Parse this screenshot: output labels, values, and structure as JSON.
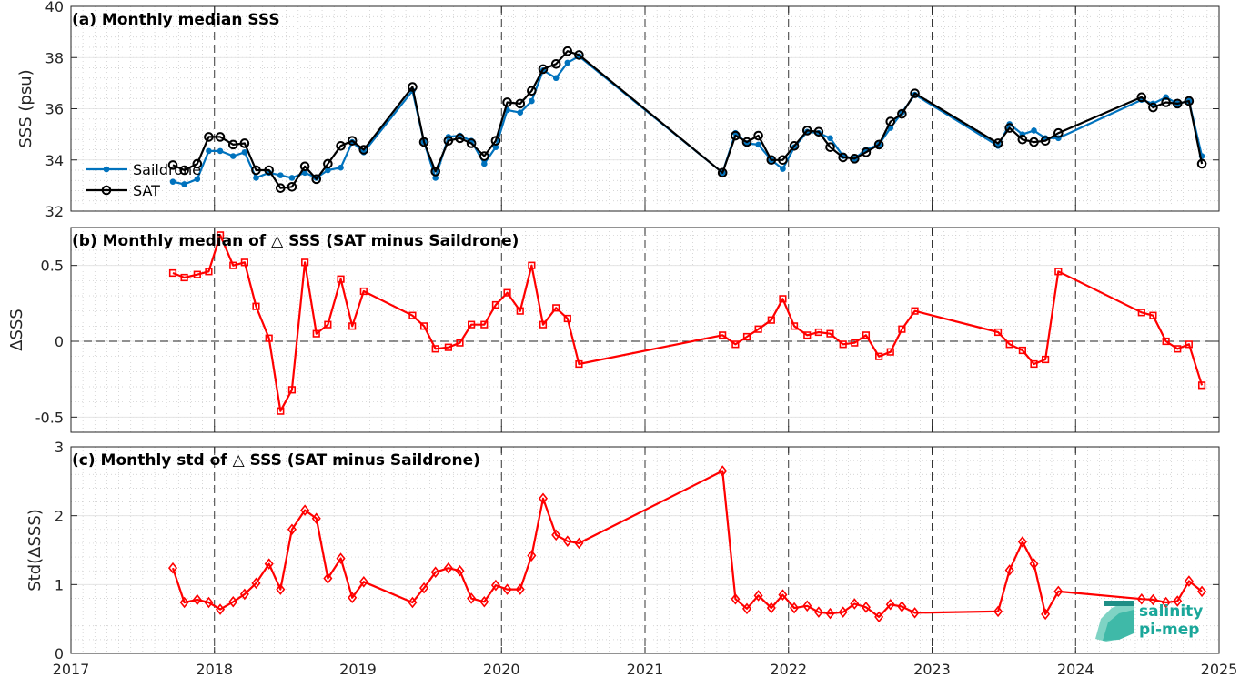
{
  "x_axis": {
    "xlim": [
      2017,
      2025
    ],
    "ticks": [
      2017,
      2018,
      2019,
      2020,
      2021,
      2022,
      2023,
      2024,
      2025
    ],
    "tick_labels": [
      "2017",
      "2018",
      "2019",
      "2020",
      "2021",
      "2022",
      "2023",
      "2024",
      "2025"
    ]
  },
  "logo": {
    "line1": "salinity",
    "line2": "pi-mep",
    "color": "#1aa79a"
  },
  "chart_data": [
    {
      "type": "line",
      "title": "(a) Monthly median SSS",
      "ylabel": "SSS (psu)",
      "ylim": [
        32,
        40
      ],
      "yticks": [
        32,
        34,
        36,
        38,
        40
      ],
      "ytick_labels": [
        "32",
        "34",
        "36",
        "38",
        "40"
      ],
      "grid": true,
      "legend_placement": "left",
      "series": [
        {
          "name": "Saildrone",
          "color": "#0072bd",
          "marker": "dot",
          "points": [
            [
              2017.71,
              33.15
            ],
            [
              2017.79,
              33.05
            ],
            [
              2017.88,
              33.25
            ],
            [
              2017.96,
              34.35
            ],
            [
              2018.04,
              34.35
            ],
            [
              2018.13,
              34.15
            ],
            [
              2018.21,
              34.3
            ],
            [
              2018.29,
              33.3
            ],
            [
              2018.38,
              33.5
            ],
            [
              2018.46,
              33.4
            ],
            [
              2018.54,
              33.3
            ],
            [
              2018.63,
              33.5
            ],
            [
              2018.71,
              33.3
            ],
            [
              2018.79,
              33.6
            ],
            [
              2018.88,
              33.7
            ],
            [
              2018.96,
              34.7
            ],
            [
              2019.04,
              34.3
            ],
            [
              2019.38,
              36.7
            ],
            [
              2019.46,
              34.7
            ],
            [
              2019.54,
              33.3
            ],
            [
              2019.63,
              34.9
            ],
            [
              2019.71,
              34.95
            ],
            [
              2019.79,
              34.75
            ],
            [
              2019.88,
              33.85
            ],
            [
              2019.96,
              34.5
            ],
            [
              2020.04,
              35.95
            ],
            [
              2020.13,
              35.85
            ],
            [
              2020.21,
              36.3
            ],
            [
              2020.29,
              37.5
            ],
            [
              2020.38,
              37.2
            ],
            [
              2020.46,
              37.8
            ],
            [
              2020.54,
              38.05
            ],
            [
              2021.54,
              33.5
            ],
            [
              2021.63,
              35.05
            ],
            [
              2021.71,
              34.65
            ],
            [
              2021.79,
              34.6
            ],
            [
              2021.88,
              34.0
            ],
            [
              2021.96,
              33.65
            ],
            [
              2022.04,
              34.5
            ],
            [
              2022.13,
              35.1
            ],
            [
              2022.21,
              35.05
            ],
            [
              2022.29,
              34.85
            ],
            [
              2022.38,
              34.15
            ],
            [
              2022.46,
              34.05
            ],
            [
              2022.54,
              34.4
            ],
            [
              2022.63,
              34.6
            ],
            [
              2022.71,
              35.25
            ],
            [
              2022.79,
              35.85
            ],
            [
              2022.88,
              36.55
            ],
            [
              2023.46,
              34.55
            ],
            [
              2023.54,
              35.4
            ],
            [
              2023.63,
              35.0
            ],
            [
              2023.71,
              35.15
            ],
            [
              2023.79,
              34.85
            ],
            [
              2023.88,
              34.85
            ],
            [
              2024.46,
              36.35
            ],
            [
              2024.54,
              36.2
            ],
            [
              2024.63,
              36.45
            ],
            [
              2024.71,
              36.2
            ],
            [
              2024.79,
              36.3
            ],
            [
              2024.88,
              34.15
            ]
          ]
        },
        {
          "name": "SAT",
          "color": "#000000",
          "marker": "circle",
          "points": [
            [
              2017.71,
              33.8
            ],
            [
              2017.79,
              33.6
            ],
            [
              2017.88,
              33.85
            ],
            [
              2017.96,
              34.9
            ],
            [
              2018.04,
              34.9
            ],
            [
              2018.13,
              34.6
            ],
            [
              2018.21,
              34.65
            ],
            [
              2018.29,
              33.6
            ],
            [
              2018.38,
              33.6
            ],
            [
              2018.46,
              32.9
            ],
            [
              2018.54,
              32.95
            ],
            [
              2018.63,
              33.75
            ],
            [
              2018.71,
              33.25
            ],
            [
              2018.79,
              33.85
            ],
            [
              2018.88,
              34.55
            ],
            [
              2018.96,
              34.75
            ],
            [
              2019.04,
              34.4
            ],
            [
              2019.38,
              36.85
            ],
            [
              2019.46,
              34.7
            ],
            [
              2019.54,
              33.55
            ],
            [
              2019.63,
              34.75
            ],
            [
              2019.71,
              34.85
            ],
            [
              2019.79,
              34.65
            ],
            [
              2019.88,
              34.15
            ],
            [
              2019.96,
              34.75
            ],
            [
              2020.04,
              36.25
            ],
            [
              2020.13,
              36.2
            ],
            [
              2020.21,
              36.7
            ],
            [
              2020.29,
              37.55
            ],
            [
              2020.38,
              37.75
            ],
            [
              2020.46,
              38.25
            ],
            [
              2020.54,
              38.1
            ],
            [
              2021.54,
              33.5
            ],
            [
              2021.63,
              34.95
            ],
            [
              2021.71,
              34.7
            ],
            [
              2021.79,
              34.95
            ],
            [
              2021.88,
              34.0
            ],
            [
              2021.96,
              34.0
            ],
            [
              2022.04,
              34.55
            ],
            [
              2022.13,
              35.15
            ],
            [
              2022.21,
              35.1
            ],
            [
              2022.29,
              34.5
            ],
            [
              2022.38,
              34.1
            ],
            [
              2022.46,
              34.05
            ],
            [
              2022.54,
              34.3
            ],
            [
              2022.63,
              34.6
            ],
            [
              2022.71,
              35.5
            ],
            [
              2022.79,
              35.8
            ],
            [
              2022.88,
              36.6
            ],
            [
              2023.46,
              34.65
            ],
            [
              2023.54,
              35.25
            ],
            [
              2023.63,
              34.8
            ],
            [
              2023.71,
              34.7
            ],
            [
              2023.79,
              34.75
            ],
            [
              2023.88,
              35.05
            ],
            [
              2024.46,
              36.45
            ],
            [
              2024.54,
              36.05
            ],
            [
              2024.63,
              36.25
            ],
            [
              2024.71,
              36.2
            ],
            [
              2024.79,
              36.3
            ],
            [
              2024.88,
              33.85
            ]
          ]
        }
      ]
    },
    {
      "type": "line",
      "title": "(b) Monthly median of △ SSS (SAT minus Saildrone)",
      "ylabel": "ΔSSS",
      "ylim": [
        -0.6,
        0.75
      ],
      "yticks": [
        -0.5,
        0,
        0.5
      ],
      "ytick_labels": [
        "-0.5",
        "0",
        "0.5"
      ],
      "grid": true,
      "zero_line": true,
      "series": [
        {
          "color": "#ff0000",
          "marker": "square",
          "points": [
            [
              2017.71,
              0.45
            ],
            [
              2017.79,
              0.42
            ],
            [
              2017.88,
              0.44
            ],
            [
              2017.96,
              0.46
            ],
            [
              2018.04,
              0.7
            ],
            [
              2018.13,
              0.5
            ],
            [
              2018.21,
              0.52
            ],
            [
              2018.29,
              0.23
            ],
            [
              2018.38,
              0.02
            ],
            [
              2018.46,
              -0.46
            ],
            [
              2018.54,
              -0.32
            ],
            [
              2018.63,
              0.52
            ],
            [
              2018.71,
              0.05
            ],
            [
              2018.79,
              0.11
            ],
            [
              2018.88,
              0.41
            ],
            [
              2018.96,
              0.1
            ],
            [
              2019.04,
              0.33
            ],
            [
              2019.38,
              0.17
            ],
            [
              2019.46,
              0.1
            ],
            [
              2019.54,
              -0.05
            ],
            [
              2019.63,
              -0.04
            ],
            [
              2019.71,
              -0.01
            ],
            [
              2019.79,
              0.11
            ],
            [
              2019.88,
              0.11
            ],
            [
              2019.96,
              0.24
            ],
            [
              2020.04,
              0.32
            ],
            [
              2020.13,
              0.2
            ],
            [
              2020.21,
              0.5
            ],
            [
              2020.29,
              0.11
            ],
            [
              2020.38,
              0.22
            ],
            [
              2020.46,
              0.15
            ],
            [
              2020.54,
              -0.15
            ],
            [
              2021.54,
              0.04
            ],
            [
              2021.63,
              -0.02
            ],
            [
              2021.71,
              0.03
            ],
            [
              2021.79,
              0.08
            ],
            [
              2021.88,
              0.14
            ],
            [
              2021.96,
              0.28
            ],
            [
              2022.04,
              0.1
            ],
            [
              2022.13,
              0.04
            ],
            [
              2022.21,
              0.06
            ],
            [
              2022.29,
              0.05
            ],
            [
              2022.38,
              -0.02
            ],
            [
              2022.46,
              -0.01
            ],
            [
              2022.54,
              0.04
            ],
            [
              2022.63,
              -0.1
            ],
            [
              2022.71,
              -0.07
            ],
            [
              2022.79,
              0.08
            ],
            [
              2022.88,
              0.2
            ],
            [
              2023.46,
              0.06
            ],
            [
              2023.54,
              -0.02
            ],
            [
              2023.63,
              -0.06
            ],
            [
              2023.71,
              -0.15
            ],
            [
              2023.79,
              -0.12
            ],
            [
              2023.88,
              0.46
            ],
            [
              2024.46,
              0.19
            ],
            [
              2024.54,
              0.17
            ],
            [
              2024.63,
              0.0
            ],
            [
              2024.71,
              -0.05
            ],
            [
              2024.79,
              -0.02
            ],
            [
              2024.88,
              -0.29
            ]
          ]
        }
      ]
    },
    {
      "type": "line",
      "title": "(c) Monthly std of △ SSS (SAT minus Saildrone)",
      "ylabel": "Std(ΔSSS)",
      "ylim": [
        0,
        3
      ],
      "yticks": [
        0,
        1,
        2,
        3
      ],
      "ytick_labels": [
        "0",
        "1",
        "2",
        "3"
      ],
      "grid": true,
      "series": [
        {
          "color": "#ff0000",
          "marker": "diamond",
          "points": [
            [
              2017.71,
              1.24
            ],
            [
              2017.79,
              0.74
            ],
            [
              2017.88,
              0.78
            ],
            [
              2017.96,
              0.74
            ],
            [
              2018.04,
              0.64
            ],
            [
              2018.13,
              0.75
            ],
            [
              2018.21,
              0.86
            ],
            [
              2018.29,
              1.02
            ],
            [
              2018.38,
              1.3
            ],
            [
              2018.46,
              0.93
            ],
            [
              2018.54,
              1.8
            ],
            [
              2018.63,
              2.08
            ],
            [
              2018.71,
              1.96
            ],
            [
              2018.79,
              1.09
            ],
            [
              2018.88,
              1.38
            ],
            [
              2018.96,
              0.81
            ],
            [
              2019.04,
              1.04
            ],
            [
              2019.38,
              0.74
            ],
            [
              2019.46,
              0.95
            ],
            [
              2019.54,
              1.18
            ],
            [
              2019.63,
              1.24
            ],
            [
              2019.71,
              1.2
            ],
            [
              2019.79,
              0.8
            ],
            [
              2019.88,
              0.75
            ],
            [
              2019.96,
              0.99
            ],
            [
              2020.04,
              0.93
            ],
            [
              2020.13,
              0.93
            ],
            [
              2020.21,
              1.42
            ],
            [
              2020.29,
              2.25
            ],
            [
              2020.38,
              1.72
            ],
            [
              2020.46,
              1.63
            ],
            [
              2020.54,
              1.6
            ],
            [
              2021.54,
              2.65
            ],
            [
              2021.63,
              0.79
            ],
            [
              2021.71,
              0.65
            ],
            [
              2021.79,
              0.84
            ],
            [
              2021.88,
              0.66
            ],
            [
              2021.96,
              0.85
            ],
            [
              2022.04,
              0.66
            ],
            [
              2022.13,
              0.69
            ],
            [
              2022.21,
              0.6
            ],
            [
              2022.29,
              0.58
            ],
            [
              2022.38,
              0.6
            ],
            [
              2022.46,
              0.72
            ],
            [
              2022.54,
              0.67
            ],
            [
              2022.63,
              0.53
            ],
            [
              2022.71,
              0.71
            ],
            [
              2022.79,
              0.68
            ],
            [
              2022.88,
              0.59
            ],
            [
              2023.46,
              0.61
            ],
            [
              2023.54,
              1.21
            ],
            [
              2023.63,
              1.62
            ],
            [
              2023.71,
              1.3
            ],
            [
              2023.79,
              0.57
            ],
            [
              2023.88,
              0.9
            ],
            [
              2024.46,
              0.79
            ],
            [
              2024.54,
              0.78
            ],
            [
              2024.63,
              0.74
            ],
            [
              2024.71,
              0.76
            ],
            [
              2024.79,
              1.05
            ],
            [
              2024.88,
              0.9
            ]
          ]
        }
      ]
    }
  ]
}
